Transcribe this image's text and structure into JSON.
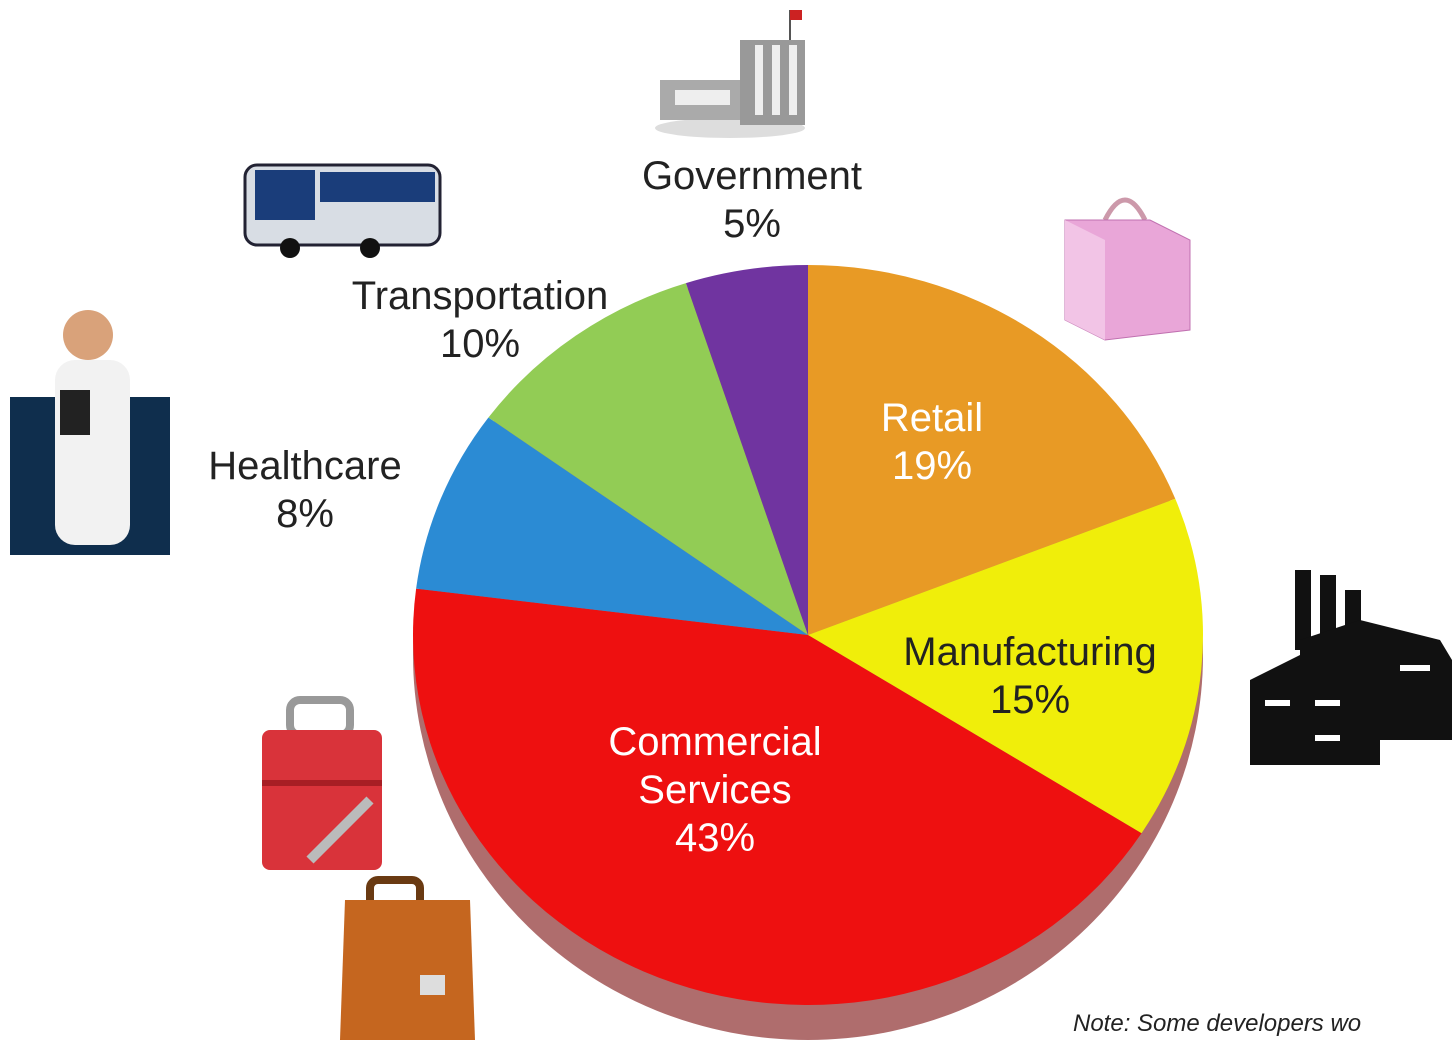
{
  "chart_data": {
    "type": "pie",
    "categories": [
      "Retail",
      "Manufacturing",
      "Commercial Services",
      "Healthcare",
      "Transportation",
      "Government"
    ],
    "values": [
      19,
      15,
      43,
      8,
      10,
      5
    ],
    "value_labels": [
      "19%",
      "15%",
      "43%",
      "8%",
      "10%",
      "5%"
    ],
    "colors": [
      "#e89a25",
      "#f0ee0a",
      "#ee1010",
      "#2b8bd4",
      "#92cc55",
      "#7034a0"
    ]
  },
  "note": "Note: Some developers wo"
}
